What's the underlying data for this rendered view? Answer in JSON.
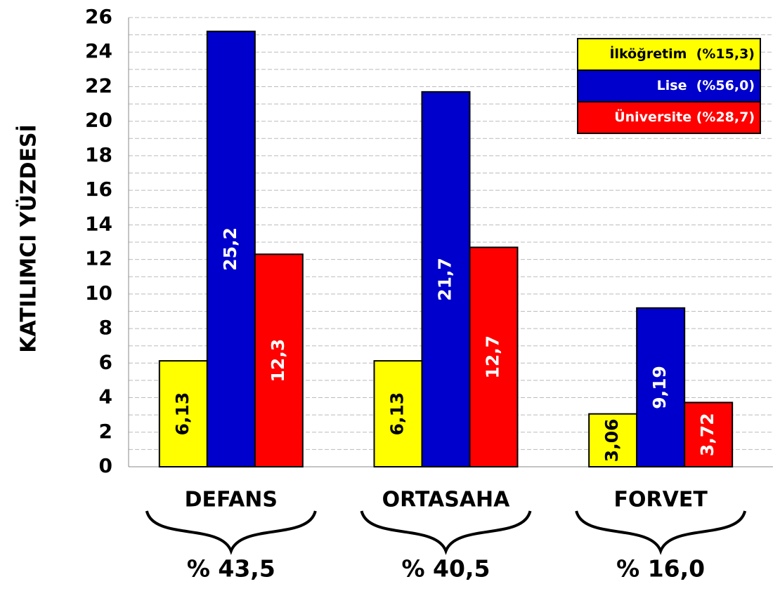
{
  "chart_data": {
    "type": "bar",
    "y_label": "KATILIMCI YÜZDESİ",
    "categories": [
      "DEFANS",
      "ORTASAHA",
      "FORVET"
    ],
    "annotations": [
      "% 43,5",
      "% 40,5",
      "% 16,0"
    ],
    "series": [
      {
        "name": "İlköğretim  (%15,3)",
        "color": "#ffff00",
        "label_color": "#000000",
        "values": [
          6.13,
          6.13,
          3.06
        ],
        "value_labels": [
          "6,13",
          "6,13",
          "3,06"
        ]
      },
      {
        "name": "Lise  (%56,0)",
        "color": "#0000cc",
        "label_color": "#ffffff",
        "values": [
          25.2,
          21.7,
          9.19
        ],
        "value_labels": [
          "25,2",
          "21,7",
          "9,19"
        ]
      },
      {
        "name": "Üniversite (%28,7)",
        "color": "#ff0000",
        "label_color": "#ffffff",
        "values": [
          12.3,
          12.7,
          3.72
        ],
        "value_labels": [
          "12,3",
          "12,7",
          "3,72"
        ]
      }
    ],
    "ylim": [
      0,
      26
    ],
    "yticks": [
      0,
      2,
      4,
      6,
      8,
      10,
      12,
      14,
      16,
      18,
      20,
      22,
      24,
      26
    ],
    "grid": true,
    "legend": "top-right"
  }
}
